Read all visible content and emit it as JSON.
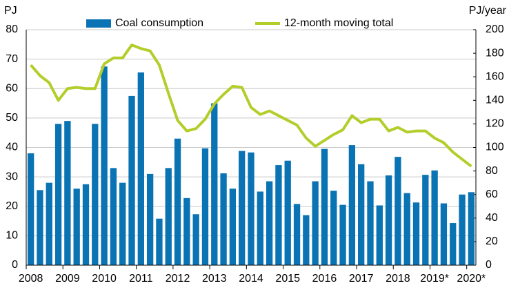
{
  "chart_data": {
    "type": "bar-line",
    "y_label": "PJ",
    "y2_label": "PJ/year",
    "categories": [
      "2008",
      null,
      null,
      null,
      "2009",
      null,
      null,
      null,
      "2010",
      null,
      null,
      null,
      "2011",
      null,
      null,
      null,
      "2012",
      null,
      null,
      null,
      "2013",
      null,
      null,
      null,
      "2014",
      null,
      null,
      null,
      "2015",
      null,
      null,
      null,
      "2016",
      null,
      null,
      null,
      "2017",
      null,
      null,
      null,
      "2018",
      null,
      null,
      null,
      "2019*",
      null,
      null,
      null,
      "2020*"
    ],
    "series": [
      {
        "name": "Coal consumption",
        "type": "bar",
        "color": "#0a73b3",
        "axis": "y",
        "values": [
          38,
          25.5,
          28,
          48,
          49,
          26,
          27.5,
          48,
          67.5,
          33,
          28,
          57.5,
          65.5,
          31,
          15.8,
          33,
          43,
          22.8,
          17.3,
          39.7,
          55,
          31.2,
          26,
          38.8,
          38.3,
          25,
          28.5,
          34,
          35.5,
          20.8,
          17,
          28.5,
          39.5,
          25.3,
          20.5,
          40.8,
          34.3,
          28.5,
          20.3,
          30.5,
          36.8,
          24.5,
          21.3,
          30.7,
          32.2,
          21,
          14.3,
          24,
          24.8
        ]
      },
      {
        "name": "12-month moving total",
        "type": "line",
        "color": "#b4cd2a",
        "axis": "y2",
        "values": [
          170,
          161,
          155,
          140,
          150,
          151,
          150,
          150,
          171,
          176,
          176,
          187,
          184,
          182,
          170,
          146,
          123,
          114,
          116,
          124,
          137,
          145,
          152,
          151,
          134,
          128,
          131,
          127,
          123,
          119,
          108,
          101,
          106,
          111,
          115,
          127,
          121,
          124,
          124,
          114,
          117,
          113,
          114,
          114,
          108,
          104,
          96,
          90,
          84
        ]
      }
    ],
    "ylim": [
      0,
      80
    ],
    "yticks": [
      0,
      10,
      20,
      30,
      40,
      50,
      60,
      70,
      80
    ],
    "y2lim": [
      0,
      200
    ],
    "y2ticks": [
      0,
      20,
      40,
      60,
      80,
      100,
      120,
      140,
      160,
      180,
      200
    ],
    "grid": true
  }
}
